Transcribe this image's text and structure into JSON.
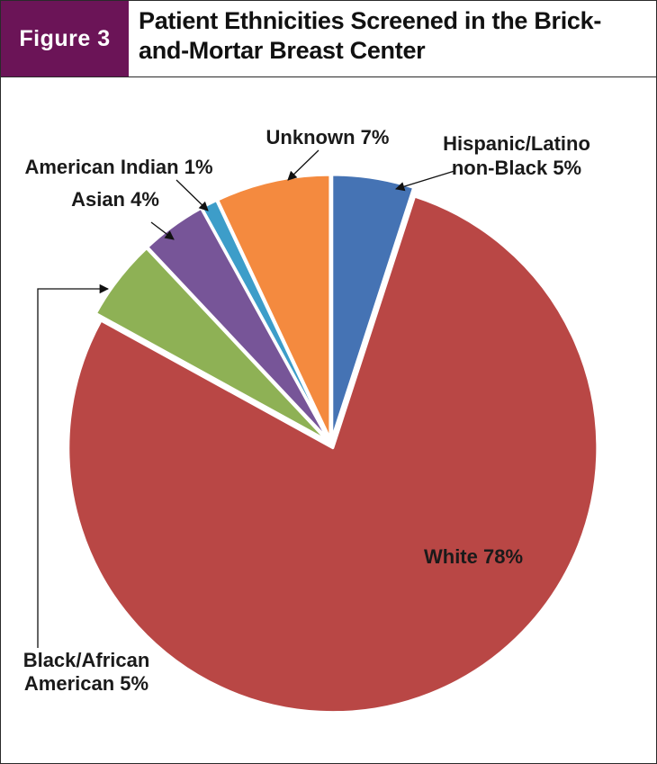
{
  "figure_label": "Figure 3",
  "title_lines": [
    "Patient Ethnicities Screened in the Brick-",
    "and-Mortar Breast Center"
  ],
  "chart_data": {
    "type": "pie",
    "title": "Patient Ethnicities Screened in the Brick-and-Mortar Breast Center",
    "start_angle_deg": 0,
    "direction": "clockwise",
    "slices": [
      {
        "label": "Hispanic/Latino non-Black",
        "value": 5,
        "color": "#4573b4",
        "label_lines": [
          "Hispanic/Latino",
          "non-Black 5%"
        ]
      },
      {
        "label": "White",
        "value": 78,
        "color": "#b94745",
        "label_lines": [
          "White 78%"
        ]
      },
      {
        "label": "Black/African American",
        "value": 5,
        "color": "#8eb155",
        "label_lines": [
          "Black/African",
          "American 5%"
        ]
      },
      {
        "label": "Asian",
        "value": 4,
        "color": "#775598",
        "label_lines": [
          "Asian 4%"
        ]
      },
      {
        "label": "American Indian",
        "value": 1,
        "color": "#3d9dc9",
        "label_lines": [
          "American Indian 1%"
        ]
      },
      {
        "label": "Unknown",
        "value": 7,
        "color": "#f48a3f",
        "label_lines": [
          "Unknown 7%"
        ]
      }
    ]
  }
}
